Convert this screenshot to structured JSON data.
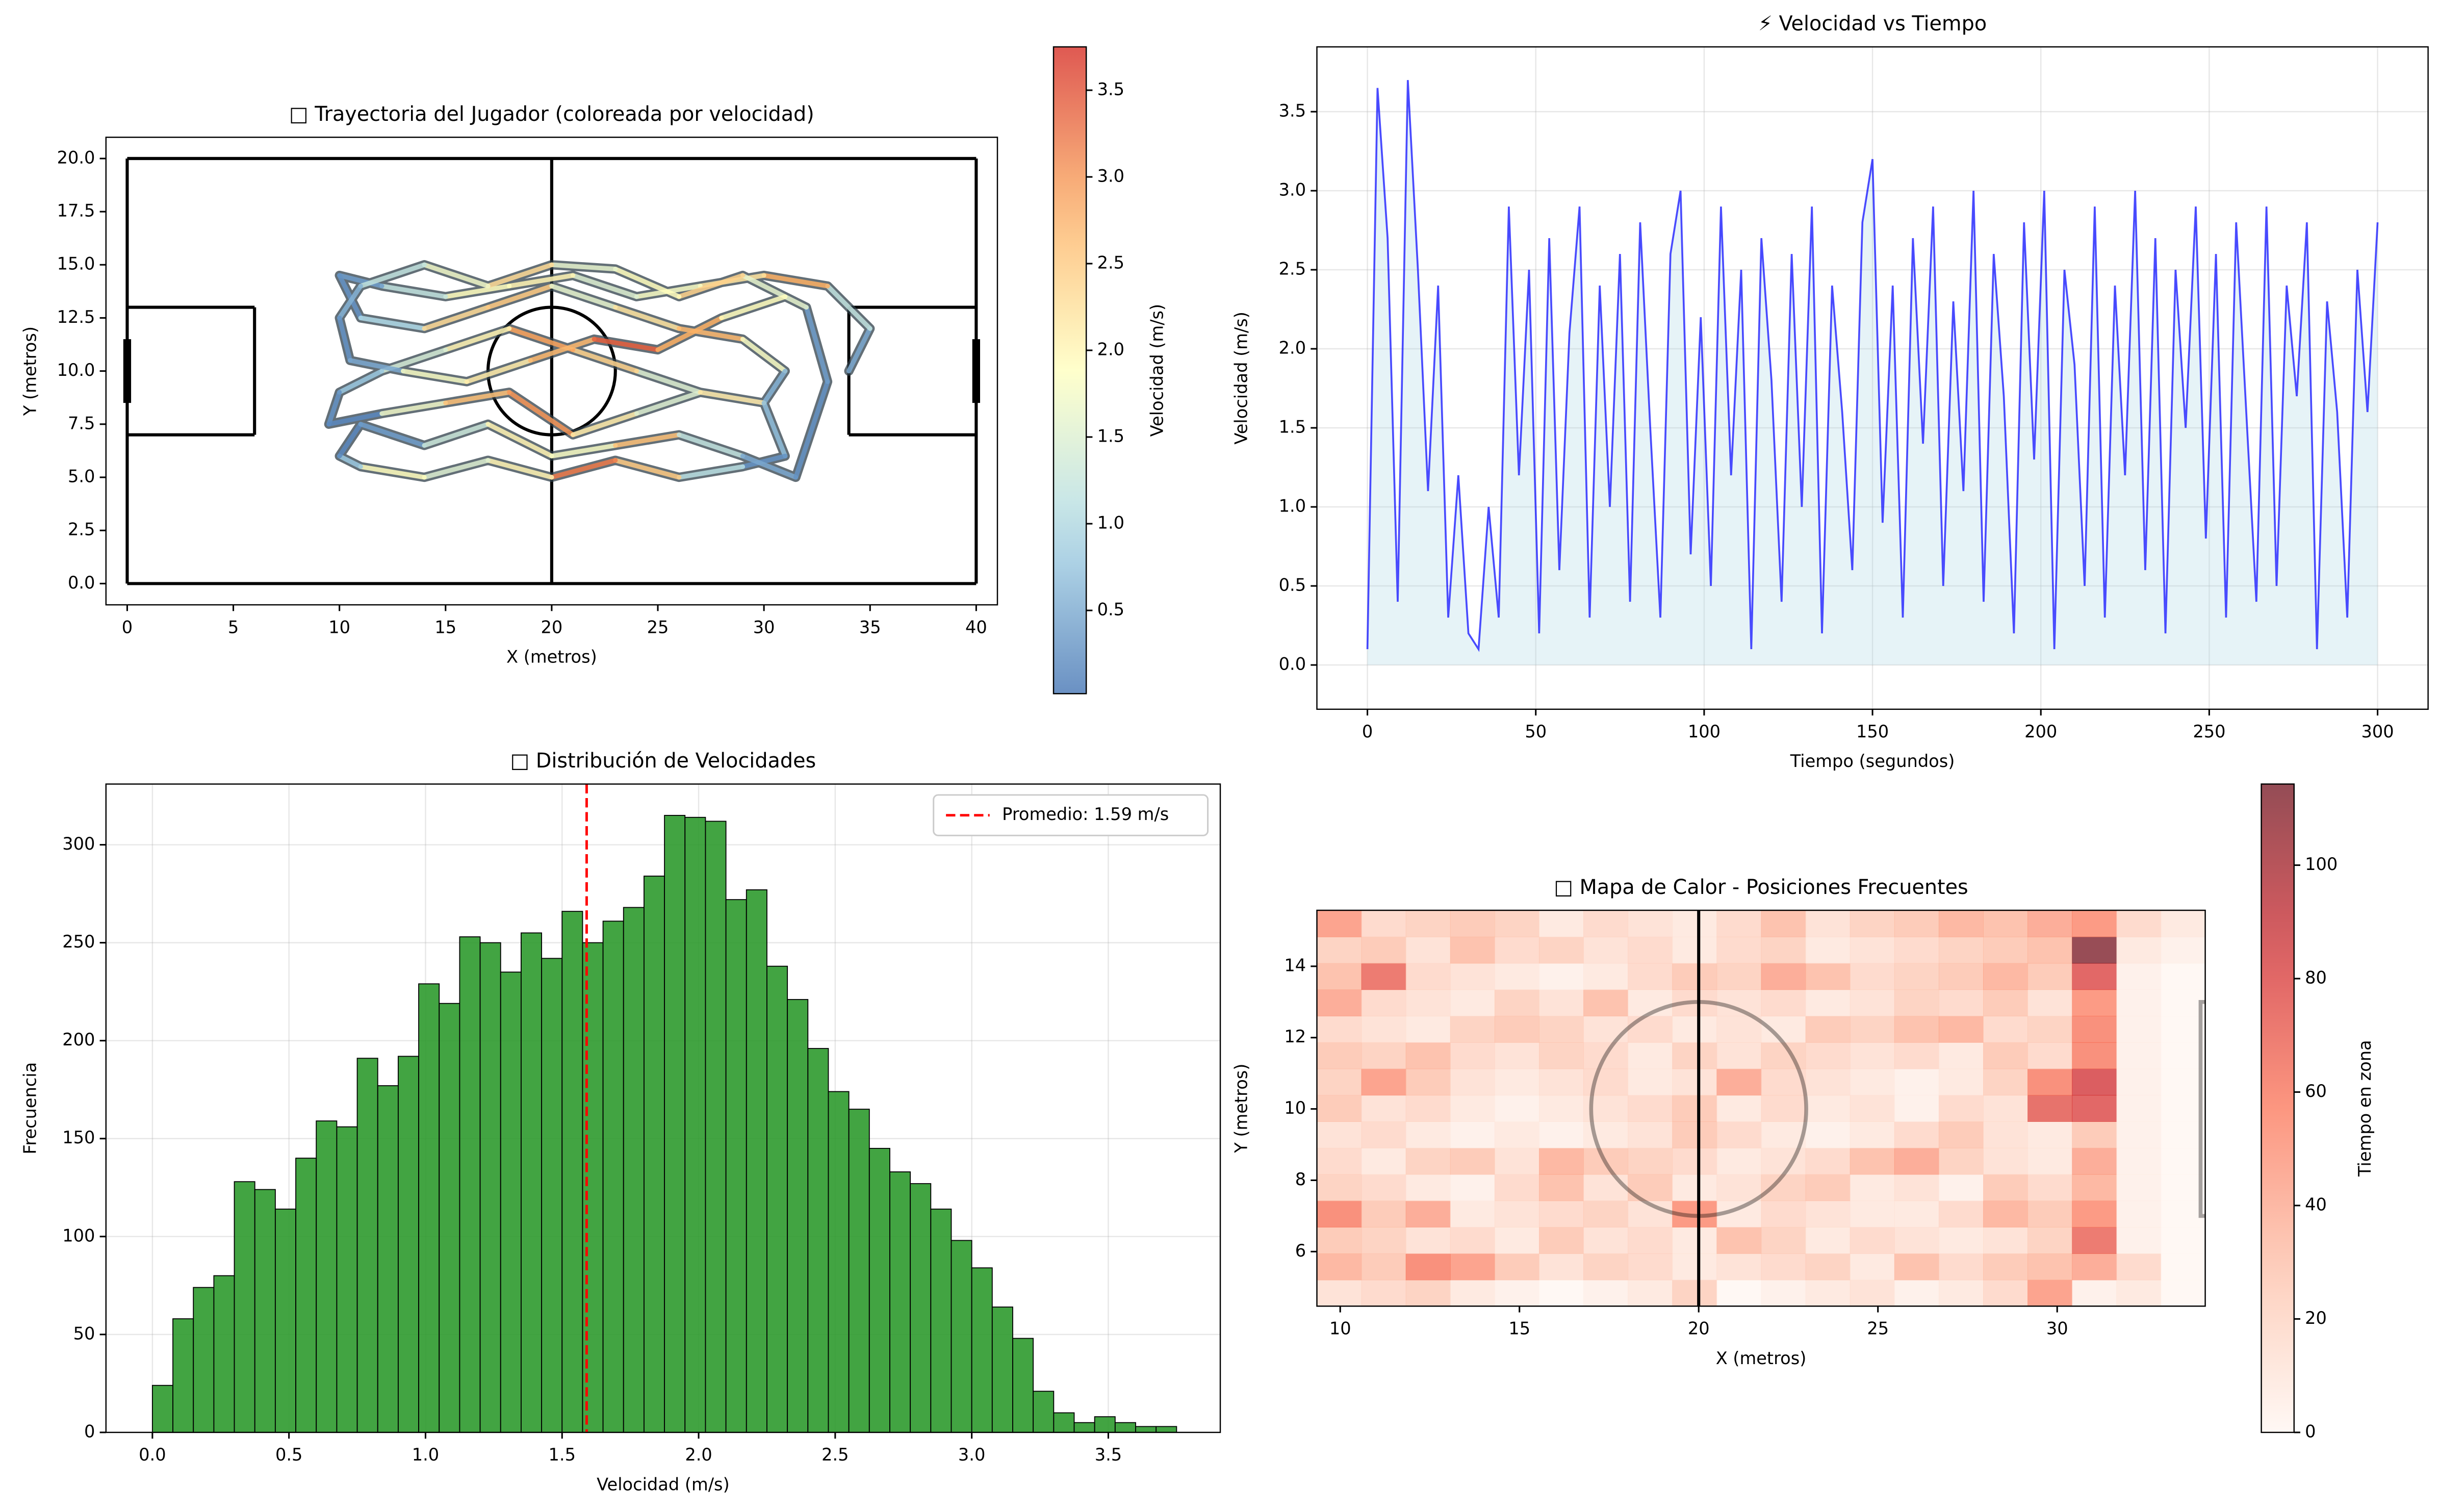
{
  "chart_data": [
    {
      "type": "trajectory",
      "title": "□ Trayectoria del Jugador (coloreada por velocidad)",
      "xlabel": "X (metros)",
      "ylabel": "Y (metros)",
      "xlim": [
        -1,
        41
      ],
      "ylim": [
        -1,
        21
      ],
      "xticks": [
        0,
        5,
        10,
        15,
        20,
        25,
        30,
        35,
        40
      ],
      "yticks": [
        {
          "value": 0,
          "label": "0.0"
        },
        2.5,
        {
          "value": 5,
          "label": "5.0"
        },
        7.5,
        {
          "value": 10,
          "label": "10.0"
        },
        12.5,
        {
          "value": 15,
          "label": "15.0"
        },
        17.5,
        {
          "value": 20,
          "label": "20.0"
        }
      ],
      "x": [
        34,
        35,
        33,
        30,
        27,
        24,
        21,
        18,
        15,
        12,
        10,
        11,
        14,
        17,
        20,
        23,
        26,
        29,
        31,
        30,
        27,
        24,
        21,
        18,
        15,
        12,
        10,
        9.5,
        12,
        15,
        18,
        21,
        24,
        27,
        30,
        31,
        29,
        26,
        23,
        20,
        17,
        14,
        11,
        10,
        11,
        14,
        17,
        20,
        23,
        26,
        29,
        31.5,
        33,
        32,
        29,
        26,
        23,
        20,
        17,
        14,
        11,
        10,
        10.5,
        13,
        16,
        19,
        22,
        25,
        28,
        31
      ],
      "y": [
        10,
        12,
        14,
        14.5,
        14,
        13.5,
        14.5,
        14,
        13.5,
        14,
        14.5,
        12.5,
        12,
        13,
        14,
        13,
        12,
        11.5,
        10,
        8.5,
        9,
        10,
        11,
        12,
        11,
        10,
        9,
        7.5,
        8,
        8.5,
        9,
        7,
        8,
        9,
        8.5,
        6,
        5.5,
        5,
        5.8,
        5,
        5.8,
        5,
        5.5,
        6,
        7.5,
        6.5,
        7.5,
        6,
        6.5,
        7,
        6,
        5,
        9.5,
        13,
        14.5,
        13.5,
        14.8,
        15,
        14,
        15,
        14,
        12.5,
        10.5,
        10,
        9.5,
        10.5,
        11.5,
        11,
        12.5,
        13.5
      ],
      "speed": [
        0.5,
        1.2,
        2.8,
        2.2,
        1.8,
        1.5,
        2.0,
        1.9,
        1.2,
        0.4,
        0.3,
        1.0,
        2.3,
        2.5,
        1.6,
        2.2,
        2.7,
        1.8,
        0.6,
        0.4,
        1.5,
        2.4,
        2.9,
        2.0,
        1.4,
        0.8,
        0.3,
        0.2,
        1.7,
        2.6,
        3.0,
        2.1,
        1.5,
        2.2,
        0.7,
        0.3,
        1.1,
        2.5,
        3.2,
        2.0,
        1.5,
        1.9,
        0.8,
        0.2,
        0.4,
        1.3,
        2.0,
        1.8,
        2.6,
        1.2,
        0.5,
        0.3,
        0.4,
        1.6,
        2.4,
        1.9,
        1.6,
        2.3,
        1.7,
        1.2,
        0.6,
        0.3,
        0.5,
        1.8,
        2.1,
        2.7,
        3.4,
        2.8,
        1.9,
        0.9
      ],
      "colorbar": {
        "label": "Velocidad (m/s)",
        "lim": [
          0.02,
          3.75
        ],
        "ticks": [
          0.5,
          {
            "value": 1,
            "label": "1.0"
          },
          1.5,
          {
            "value": 2,
            "label": "2.0"
          },
          2.5,
          {
            "value": 3,
            "label": "3.0"
          },
          3.5
        ],
        "colormap": "RdYlBu_r"
      },
      "grid": false
    },
    {
      "type": "line",
      "title": "⚡ Velocidad vs Tiempo",
      "xlabel": "Tiempo (segundos)",
      "ylabel": "Velocidad (m/s)",
      "xlim": [
        -15,
        315
      ],
      "ylim": [
        -0.28,
        3.91
      ],
      "xticks": [
        0,
        50,
        100,
        150,
        200,
        250,
        300
      ],
      "yticks": [
        {
          "value": 0,
          "label": "0.0"
        },
        0.5,
        {
          "value": 1,
          "label": "1.0"
        },
        1.5,
        {
          "value": 2,
          "label": "2.0"
        },
        2.5,
        {
          "value": 3,
          "label": "3.0"
        },
        3.5
      ],
      "x": [
        0,
        3,
        6,
        9,
        12,
        15,
        18,
        21,
        24,
        27,
        30,
        33,
        36,
        39,
        42,
        45,
        48,
        51,
        54,
        57,
        60,
        63,
        66,
        69,
        72,
        75,
        78,
        81,
        84,
        87,
        90,
        93,
        96,
        99,
        102,
        105,
        108,
        111,
        114,
        117,
        120,
        123,
        126,
        129,
        132,
        135,
        138,
        141,
        144,
        147,
        150,
        153,
        156,
        159,
        162,
        165,
        168,
        171,
        174,
        177,
        180,
        183,
        186,
        189,
        192,
        195,
        198,
        201,
        204,
        207,
        210,
        213,
        216,
        219,
        222,
        225,
        228,
        231,
        234,
        237,
        240,
        243,
        246,
        249,
        252,
        255,
        258,
        261,
        264,
        267,
        270,
        273,
        276,
        279,
        282,
        285,
        288,
        291,
        294,
        297,
        300
      ],
      "series": [
        {
          "color": "#0000ff",
          "fill": "#add8e6",
          "values": [
            0.1,
            3.65,
            2.7,
            0.4,
            3.7,
            2.5,
            1.1,
            2.4,
            0.3,
            1.2,
            0.2,
            0.1,
            1.0,
            0.3,
            2.9,
            1.2,
            2.5,
            0.2,
            2.7,
            0.6,
            2.1,
            2.9,
            0.3,
            2.4,
            1.0,
            2.6,
            0.4,
            2.8,
            1.5,
            0.3,
            2.6,
            3.0,
            0.7,
            2.2,
            0.5,
            2.9,
            1.2,
            2.5,
            0.1,
            2.7,
            1.8,
            0.4,
            2.6,
            1.0,
            2.9,
            0.2,
            2.4,
            1.6,
            0.6,
            2.8,
            3.2,
            0.9,
            2.4,
            0.3,
            2.7,
            1.4,
            2.9,
            0.5,
            2.3,
            1.1,
            3.0,
            0.4,
            2.6,
            1.7,
            0.2,
            2.8,
            1.3,
            3.0,
            0.1,
            2.5,
            1.9,
            0.5,
            2.9,
            0.3,
            2.4,
            1.2,
            3.0,
            0.6,
            2.7,
            0.2,
            2.5,
            1.5,
            2.9,
            0.8,
            2.6,
            0.3,
            2.8,
            1.6,
            0.4,
            2.9,
            0.5,
            2.4,
            1.7,
            2.8,
            0.1,
            2.3,
            1.6,
            0.3,
            2.5,
            1.6,
            2.8
          ]
        }
      ],
      "grid": true
    },
    {
      "type": "histogram",
      "title": "□ Distribución de Velocidades",
      "xlabel": "Velocidad (m/s)",
      "ylabel": "Frecuencia",
      "xlim": [
        -0.17,
        3.91
      ],
      "ylim": [
        0,
        331
      ],
      "xticks": [
        {
          "value": 0,
          "label": "0.0"
        },
        0.5,
        {
          "value": 1,
          "label": "1.0"
        },
        1.5,
        {
          "value": 2,
          "label": "2.0"
        },
        2.5,
        {
          "value": 3,
          "label": "3.0"
        },
        3.5
      ],
      "yticks": [
        0,
        50,
        100,
        150,
        200,
        250,
        300
      ],
      "bins": [
        0,
        0.075,
        0.15,
        0.225,
        0.3,
        0.375,
        0.45,
        0.525,
        0.6,
        0.675,
        0.75,
        0.825,
        0.9,
        0.975,
        1.05,
        1.125,
        1.2,
        1.275,
        1.35,
        1.425,
        1.5,
        1.575,
        1.65,
        1.725,
        1.8,
        1.875,
        1.95,
        2.025,
        2.1,
        2.175,
        2.25,
        2.325,
        2.4,
        2.475,
        2.55,
        2.625,
        2.7,
        2.775,
        2.85,
        2.925,
        3.0,
        3.075,
        3.15,
        3.225,
        3.3,
        3.375,
        3.45,
        3.525,
        3.6,
        3.675,
        3.75
      ],
      "values": [
        24,
        58,
        74,
        80,
        128,
        124,
        114,
        140,
        159,
        156,
        191,
        177,
        192,
        229,
        219,
        253,
        250,
        235,
        255,
        242,
        266,
        250,
        261,
        268,
        284,
        315,
        314,
        312,
        272,
        277,
        238,
        221,
        196,
        174,
        165,
        145,
        133,
        127,
        114,
        98,
        84,
        64,
        48,
        21,
        10,
        5,
        8,
        5,
        3,
        3
      ],
      "color": "#2e9a2e",
      "mean_line": {
        "name": "Promedio: 1.59 m/s",
        "value": 1.59,
        "color": "#ff0000"
      },
      "legend": "upper right",
      "grid": true
    },
    {
      "type": "heatmap",
      "title": "□ Mapa de Calor - Posiciones Frecuentes",
      "xlabel": "X (metros)",
      "ylabel": "Y (metros)",
      "xlim": [
        9.35,
        34.13
      ],
      "ylim": [
        4.47,
        15.57
      ],
      "xticks": [
        10,
        15,
        20,
        25,
        30
      ],
      "yticks": [
        6,
        8,
        10,
        12,
        14
      ],
      "z": [
        [
          15,
          20,
          25,
          10,
          5,
          0,
          5,
          10,
          25,
          0,
          5,
          10,
          15,
          5,
          10,
          20,
          50,
          5,
          10,
          0
        ],
        [
          40,
          30,
          60,
          50,
          30,
          15,
          25,
          20,
          10,
          15,
          20,
          25,
          10,
          35,
          20,
          30,
          35,
          45,
          20,
          0
        ],
        [
          30,
          25,
          15,
          20,
          10,
          30,
          15,
          20,
          10,
          35,
          25,
          10,
          20,
          15,
          10,
          15,
          25,
          70,
          5,
          0
        ],
        [
          60,
          30,
          45,
          10,
          15,
          20,
          25,
          15,
          55,
          10,
          20,
          15,
          10,
          10,
          20,
          40,
          30,
          55,
          5,
          0
        ],
        [
          25,
          20,
          10,
          5,
          20,
          35,
          15,
          30,
          10,
          15,
          25,
          30,
          10,
          15,
          5,
          30,
          20,
          40,
          5,
          0
        ],
        [
          20,
          10,
          25,
          30,
          15,
          40,
          30,
          25,
          20,
          10,
          15,
          20,
          35,
          45,
          25,
          15,
          10,
          45,
          5,
          0
        ],
        [
          15,
          20,
          10,
          5,
          10,
          5,
          10,
          15,
          30,
          20,
          10,
          5,
          10,
          20,
          30,
          15,
          10,
          30,
          5,
          0
        ],
        [
          30,
          15,
          20,
          10,
          5,
          10,
          15,
          20,
          30,
          10,
          20,
          10,
          15,
          5,
          20,
          15,
          75,
          80,
          5,
          0
        ],
        [
          25,
          50,
          30,
          15,
          10,
          15,
          20,
          10,
          15,
          45,
          20,
          15,
          10,
          5,
          10,
          25,
          60,
          85,
          5,
          0
        ],
        [
          30,
          25,
          35,
          20,
          15,
          25,
          20,
          10,
          25,
          15,
          25,
          20,
          15,
          20,
          10,
          30,
          20,
          60,
          5,
          0
        ],
        [
          20,
          15,
          10,
          25,
          30,
          25,
          15,
          20,
          10,
          15,
          10,
          30,
          25,
          35,
          40,
          20,
          25,
          60,
          5,
          0
        ],
        [
          45,
          20,
          15,
          10,
          25,
          15,
          35,
          10,
          20,
          15,
          20,
          10,
          15,
          25,
          20,
          30,
          15,
          55,
          5,
          0
        ],
        [
          35,
          70,
          20,
          15,
          10,
          5,
          10,
          20,
          30,
          25,
          45,
          35,
          20,
          25,
          30,
          40,
          30,
          80,
          5,
          0
        ],
        [
          25,
          30,
          15,
          35,
          20,
          25,
          15,
          20,
          10,
          20,
          25,
          10,
          15,
          20,
          25,
          30,
          35,
          113,
          10,
          5
        ],
        [
          50,
          20,
          25,
          30,
          25,
          10,
          20,
          15,
          10,
          20,
          35,
          15,
          25,
          30,
          40,
          35,
          45,
          55,
          20,
          10
        ]
      ],
      "colorbar": {
        "label": "Tiempo en zona",
        "lim": [
          0,
          114.3
        ],
        "ticks": [
          0,
          20,
          40,
          60,
          80,
          100
        ],
        "colormap": "Reds"
      },
      "grid": false
    }
  ]
}
